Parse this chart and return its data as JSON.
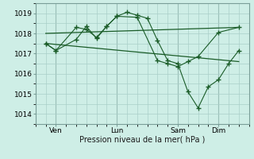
{
  "background_color": "#ceeee6",
  "grid_color": "#aacfc8",
  "line_color": "#1a5c28",
  "ylim": [
    1013.5,
    1019.5
  ],
  "yticks": [
    1014,
    1015,
    1016,
    1017,
    1018,
    1019
  ],
  "xlabel": "Pression niveau de la mer( hPa )",
  "xtick_labels": [
    "Ven",
    "Lun",
    "Sam",
    "Dim"
  ],
  "xtick_positions": [
    0.5,
    3.5,
    6.5,
    8.5
  ],
  "xlim": [
    -0.5,
    10.0
  ],
  "series1_x": [
    0,
    0.5,
    1.5,
    2.0,
    2.5,
    3.0,
    3.5,
    4.5,
    5.5,
    6.0,
    6.5,
    7.0,
    7.5,
    8.5,
    9.5
  ],
  "series1_y": [
    1017.5,
    1017.15,
    1018.3,
    1018.2,
    1017.8,
    1018.35,
    1018.85,
    1018.8,
    1016.65,
    1016.5,
    1016.35,
    1016.6,
    1016.85,
    1018.05,
    1018.3
  ],
  "series2_x": [
    0,
    0.5,
    1.5,
    2.0,
    2.5,
    3.0,
    3.5,
    4.0,
    4.5,
    5.0,
    5.5,
    6.0,
    6.5,
    7.0,
    7.5,
    8.0,
    8.5,
    9.0,
    9.5
  ],
  "series2_y": [
    1017.5,
    1017.15,
    1017.7,
    1018.35,
    1017.75,
    1018.35,
    1018.85,
    1019.05,
    1018.9,
    1018.75,
    1017.65,
    1016.65,
    1016.5,
    1015.1,
    1014.3,
    1015.35,
    1015.7,
    1016.5,
    1017.15
  ],
  "series3_x": [
    0,
    9.5
  ],
  "series3_y": [
    1017.5,
    1016.6
  ],
  "series4_x": [
    0,
    9.5
  ],
  "series4_y": [
    1018.0,
    1018.3
  ],
  "vline_positions": [
    0.5,
    3.5,
    6.5,
    8.5
  ]
}
